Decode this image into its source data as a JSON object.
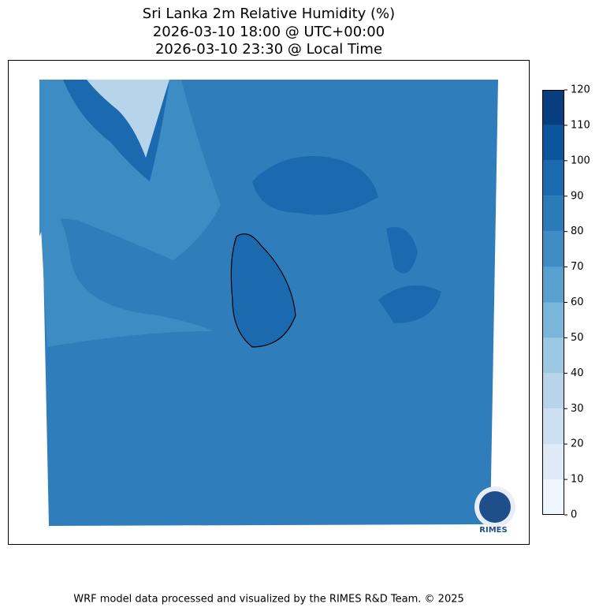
{
  "title": [
    "Sri Lanka 2m Relative Humidity (%)",
    "2026-03-10 18:00 @ UTC+00:00",
    "2026-03-10 23:30 @ Local Time"
  ],
  "colorbar": {
    "ticks": [
      0,
      10,
      20,
      30,
      40,
      50,
      60,
      70,
      80,
      90,
      100,
      110,
      120
    ],
    "colors": [
      "#f0f6fd",
      "#deebf7",
      "#cde0f1",
      "#b7d4ea",
      "#9cc9e1",
      "#7ab6d9",
      "#58a1cf",
      "#3d8dc4",
      "#2c7bb9",
      "#1b69af",
      "#0b559f",
      "#083d7f"
    ]
  },
  "logo": "RIMES",
  "footer": "WRF model data processed and visualized by the RIMES R&D Team. © 2025"
}
